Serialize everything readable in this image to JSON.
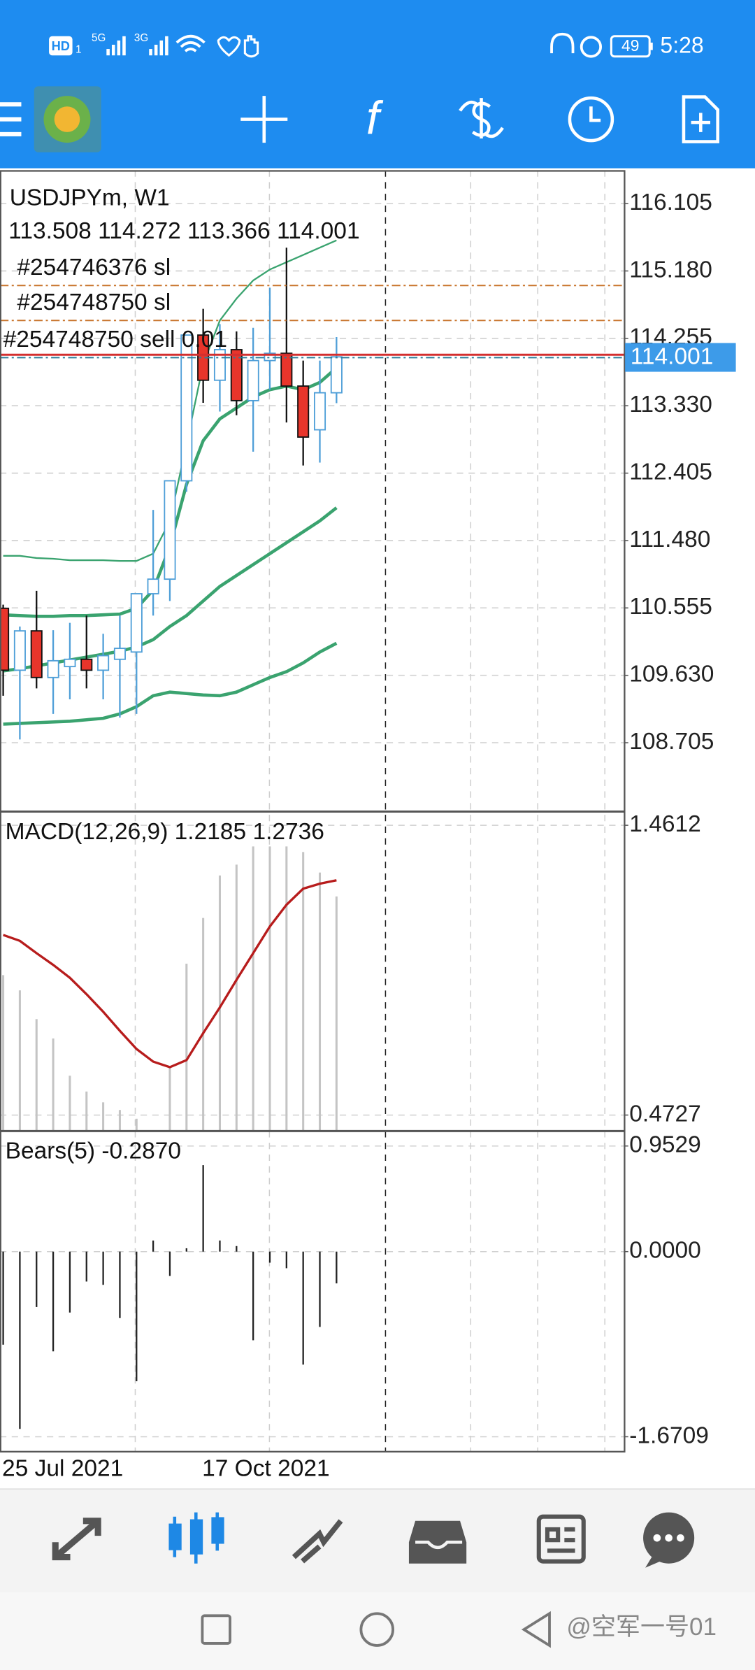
{
  "status_bar": {
    "hd": "HD",
    "sim": "1",
    "net1": "5G",
    "net2": "3G",
    "battery": "49",
    "time": "5:28"
  },
  "toolbar": {
    "function_icon": "f"
  },
  "chart_data": [
    {
      "type": "candlestick",
      "title": "USDJPYm, W1",
      "subtitle": "113.508 114.272 113.366 114.001",
      "categories": [
        "25 Jul 2021",
        null,
        null,
        null,
        null,
        null,
        null,
        null,
        null,
        null,
        null,
        null,
        "17 Oct 2021",
        null,
        null,
        null,
        null,
        null,
        null,
        null,
        null
      ],
      "open": [
        110.55,
        109.7,
        110.24,
        109.6,
        109.75,
        109.85,
        109.7,
        109.85,
        109.95,
        110.75,
        110.95,
        112.3,
        114.3,
        113.68,
        114.1,
        113.4,
        113.95,
        114.05,
        113.6,
        113.0,
        113.508
      ],
      "high": [
        110.6,
        110.3,
        110.79,
        110.25,
        110.35,
        110.45,
        110.2,
        110.45,
        110.75,
        111.9,
        112.3,
        114.3,
        114.66,
        114.45,
        114.35,
        114.4,
        114.95,
        115.5,
        113.95,
        113.95,
        114.272
      ],
      "low": [
        109.35,
        108.75,
        109.45,
        109.1,
        109.3,
        109.45,
        109.3,
        109.05,
        109.1,
        110.45,
        110.65,
        112.15,
        113.37,
        113.25,
        113.2,
        112.7,
        113.55,
        113.1,
        112.51,
        112.55,
        113.366
      ],
      "close": [
        109.7,
        110.24,
        109.6,
        109.83,
        109.85,
        109.7,
        109.9,
        110.0,
        110.75,
        110.95,
        112.3,
        114.3,
        113.68,
        114.1,
        113.4,
        113.95,
        114.05,
        113.6,
        112.9,
        113.508,
        114.001
      ],
      "up_color": "#4f9fd8",
      "down_color": "#e8352b",
      "overlays": [
        {
          "color": "#3aa36f",
          "width": 1.5,
          "values": [
            111.27,
            111.27,
            111.24,
            111.23,
            111.21,
            111.21,
            111.21,
            111.2,
            111.2,
            111.3,
            111.75,
            112.8,
            113.9,
            114.5,
            114.8,
            115.05,
            115.2,
            115.3,
            115.4,
            115.5,
            115.6
          ]
        },
        {
          "color": "#3aa36f",
          "width": 3,
          "values": [
            110.46,
            110.45,
            110.44,
            110.44,
            110.45,
            110.45,
            110.46,
            110.47,
            110.55,
            110.8,
            111.4,
            112.25,
            112.85,
            113.15,
            113.3,
            113.45,
            113.55,
            113.6,
            113.55,
            113.65,
            113.85
          ]
        },
        {
          "color": "#3aa36f",
          "width": 3,
          "values": [
            109.69,
            109.72,
            109.76,
            109.8,
            109.84,
            109.88,
            109.92,
            109.96,
            110.02,
            110.12,
            110.3,
            110.45,
            110.65,
            110.85,
            111.0,
            111.15,
            111.3,
            111.45,
            111.6,
            111.75,
            111.93
          ]
        },
        {
          "color": "#3aa36f",
          "width": 3,
          "values": [
            108.96,
            108.97,
            108.98,
            108.99,
            109.0,
            109.02,
            109.04,
            109.1,
            109.2,
            109.35,
            109.4,
            109.38,
            109.36,
            109.35,
            109.4,
            109.5,
            109.6,
            109.68,
            109.8,
            109.95,
            110.07
          ]
        }
      ],
      "levels": [
        {
          "label": "#254746376 sl",
          "value": 114.98,
          "color": "#c8742c"
        },
        {
          "label": "#254748750 sl",
          "value": 114.5,
          "color": "#c8742c"
        },
        {
          "label": "#254748750 sell 0.01",
          "value": 113.99,
          "color": "#2e7d9a"
        }
      ],
      "current_price": 114.001,
      "current_color": "#d32f2f",
      "current_box_color": "#3d9be9",
      "ylim": [
        107.76,
        116.56
      ],
      "yticks": [
        116.105,
        {
          "value": 115.18,
          "label": "115.180"
        },
        114.255,
        {
          "value": 113.33,
          "label": "113.330"
        },
        112.405,
        {
          "value": 111.48,
          "label": "111.480"
        },
        110.555,
        {
          "value": 109.63,
          "label": "109.630"
        },
        108.705
      ],
      "grid": true
    },
    {
      "type": "macd",
      "title": "MACD(12,26,9) 1.2185 1.2736",
      "histogram": [
        0.95,
        0.898,
        0.8,
        0.734,
        0.607,
        0.553,
        0.516,
        0.49,
        0.46,
        0.42,
        0.64,
        0.989,
        1.145,
        1.29,
        1.327,
        1.389,
        1.389,
        1.389,
        1.37,
        1.3,
        1.2185
      ],
      "signal": [
        1.087,
        1.067,
        1.025,
        0.985,
        0.941,
        0.885,
        0.825,
        0.76,
        0.698,
        0.655,
        0.636,
        0.66,
        0.752,
        0.84,
        0.934,
        1.025,
        1.116,
        1.19,
        1.245,
        1.262,
        1.2736
      ],
      "histogram_color": "#c4c4c4",
      "signal_color": "#b71c1c",
      "ylim": [
        0.418,
        1.508
      ],
      "yticks": [
        1.4612,
        0.4727
      ],
      "grid": true
    },
    {
      "type": "bars",
      "title": "Bears(5) -0.2870",
      "values": [
        -0.84,
        -1.6,
        -0.5,
        -0.9,
        -0.55,
        -0.27,
        -0.3,
        -0.6,
        -1.17,
        0.1,
        -0.22,
        0.03,
        0.78,
        0.1,
        0.05,
        -0.8,
        -0.1,
        -0.15,
        -1.02,
        -0.68,
        -0.287
      ],
      "color": "#222222",
      "ylim": [
        -1.8055,
        1.0875
      ],
      "yticks": [
        0.9529,
        {
          "value": 0,
          "label": "0.0000"
        },
        -1.6709
      ],
      "grid": true
    }
  ],
  "watermark": "@空军一号01"
}
